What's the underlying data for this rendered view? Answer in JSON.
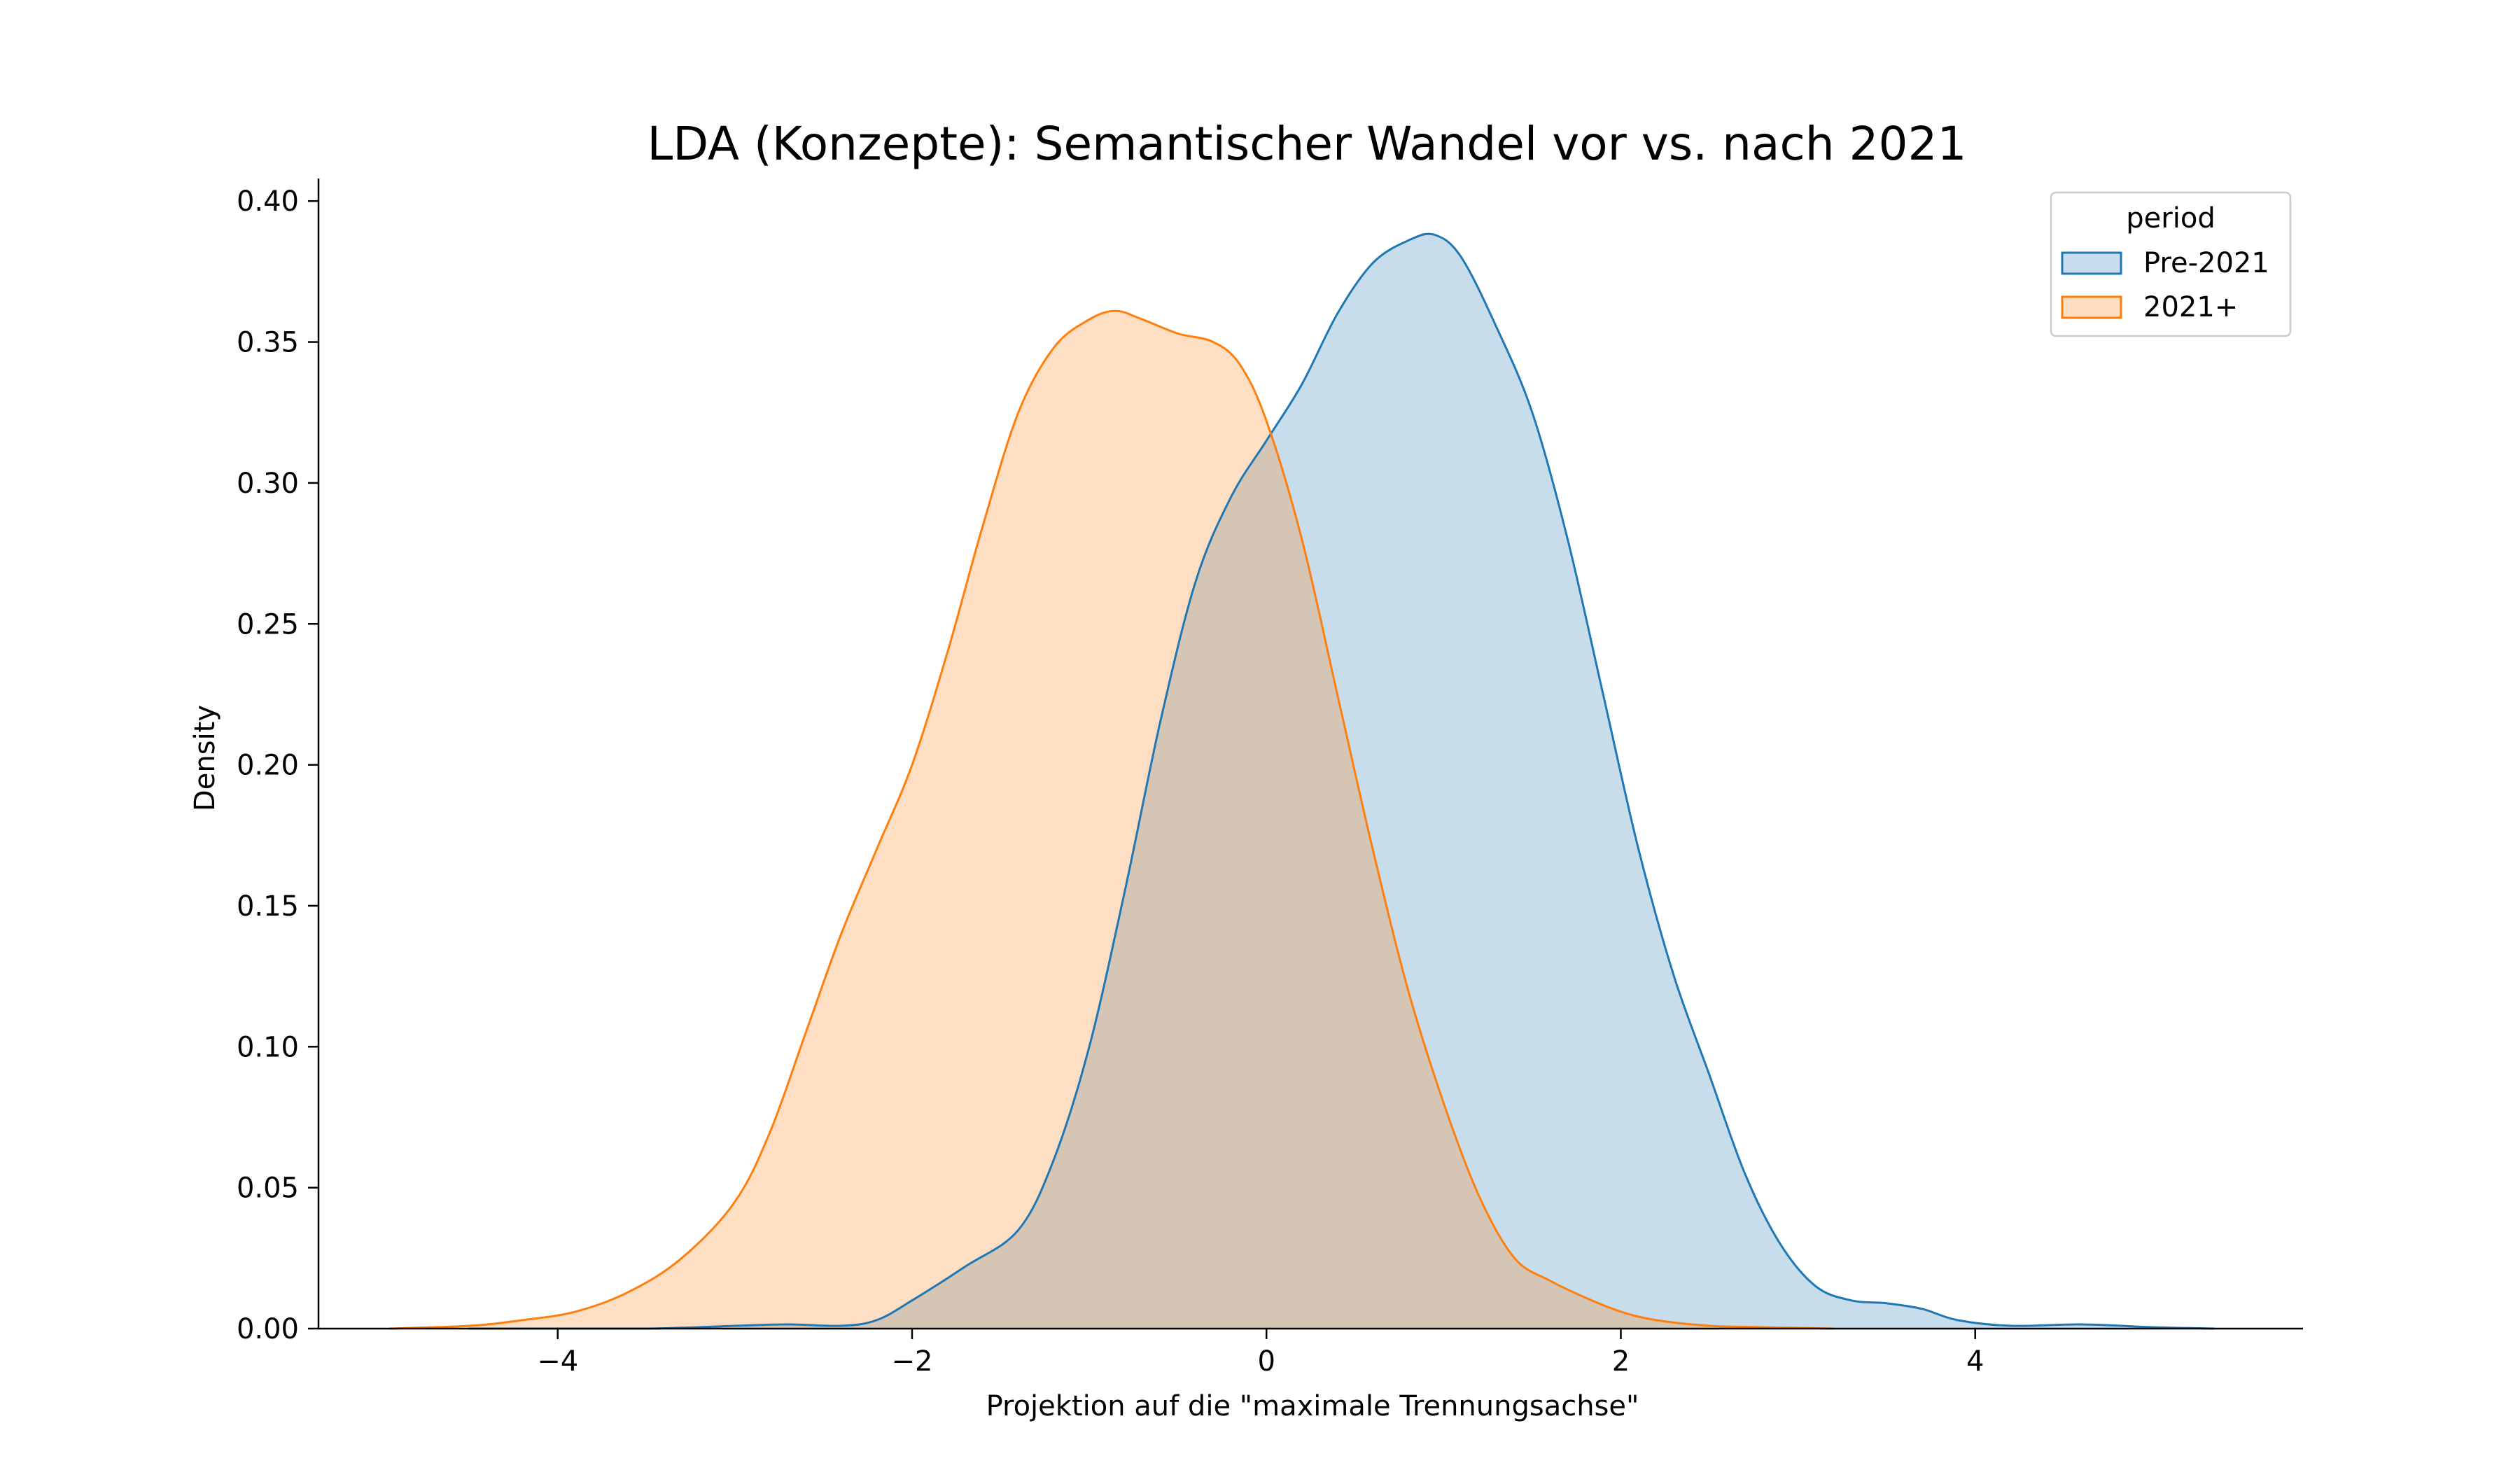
{
  "chart_data": {
    "type": "area",
    "subtype": "kde",
    "title": "LDA (Konzepte): Semantischer Wandel vor vs. nach 2021",
    "xlabel": "Projektion auf die \"maximale Trennungsachse\"",
    "ylabel": "Density",
    "xlim": [
      -5.35,
      5.85
    ],
    "ylim": [
      0,
      0.408
    ],
    "xticks": [
      -4,
      -2,
      0,
      2,
      4
    ],
    "xtick_labels": [
      "−4",
      "−2",
      "0",
      "2",
      "4"
    ],
    "yticks": [
      0,
      0.05,
      0.1,
      0.15,
      0.2,
      0.25,
      0.3,
      0.35,
      0.4
    ],
    "ytick_labels": [
      "0.00",
      "0.05",
      "0.10",
      "0.15",
      "0.20",
      "0.25",
      "0.30",
      "0.35",
      "0.40"
    ],
    "grid": false,
    "legend": {
      "title": "period",
      "position": "top-right"
    },
    "series": [
      {
        "name": "Pre-2021",
        "color": "#1f77b4",
        "fill_color": "#c6dbed",
        "points": [
          [
            -4.5,
            0.0
          ],
          [
            -3.5,
            0.0
          ],
          [
            -3.0,
            0.001
          ],
          [
            -2.7,
            0.0015
          ],
          [
            -2.4,
            0.001
          ],
          [
            -2.2,
            0.003
          ],
          [
            -2.0,
            0.01
          ],
          [
            -1.7,
            0.022
          ],
          [
            -1.4,
            0.035
          ],
          [
            -1.2,
            0.06
          ],
          [
            -1.0,
            0.1
          ],
          [
            -0.8,
            0.155
          ],
          [
            -0.6,
            0.215
          ],
          [
            -0.4,
            0.265
          ],
          [
            -0.2,
            0.295
          ],
          [
            0.0,
            0.315
          ],
          [
            0.2,
            0.335
          ],
          [
            0.4,
            0.36
          ],
          [
            0.6,
            0.378
          ],
          [
            0.8,
            0.386
          ],
          [
            0.95,
            0.388
          ],
          [
            1.1,
            0.38
          ],
          [
            1.3,
            0.355
          ],
          [
            1.5,
            0.325
          ],
          [
            1.7,
            0.28
          ],
          [
            1.9,
            0.225
          ],
          [
            2.1,
            0.17
          ],
          [
            2.3,
            0.125
          ],
          [
            2.5,
            0.09
          ],
          [
            2.7,
            0.055
          ],
          [
            2.9,
            0.03
          ],
          [
            3.1,
            0.015
          ],
          [
            3.3,
            0.01
          ],
          [
            3.5,
            0.009
          ],
          [
            3.7,
            0.007
          ],
          [
            3.9,
            0.003
          ],
          [
            4.2,
            0.001
          ],
          [
            4.6,
            0.0015
          ],
          [
            5.0,
            0.0005
          ],
          [
            5.35,
            0.0
          ]
        ]
      },
      {
        "name": "2021+",
        "color": "#ff7f0e",
        "fill_color": "#fddcbf",
        "points": [
          [
            -4.95,
            0.0
          ],
          [
            -4.5,
            0.001
          ],
          [
            -4.2,
            0.003
          ],
          [
            -3.9,
            0.006
          ],
          [
            -3.6,
            0.013
          ],
          [
            -3.3,
            0.025
          ],
          [
            -3.0,
            0.045
          ],
          [
            -2.8,
            0.07
          ],
          [
            -2.6,
            0.105
          ],
          [
            -2.4,
            0.14
          ],
          [
            -2.2,
            0.17
          ],
          [
            -2.0,
            0.2
          ],
          [
            -1.8,
            0.24
          ],
          [
            -1.6,
            0.285
          ],
          [
            -1.4,
            0.325
          ],
          [
            -1.2,
            0.348
          ],
          [
            -1.0,
            0.358
          ],
          [
            -0.85,
            0.361
          ],
          [
            -0.7,
            0.358
          ],
          [
            -0.5,
            0.353
          ],
          [
            -0.3,
            0.35
          ],
          [
            -0.15,
            0.342
          ],
          [
            0.0,
            0.322
          ],
          [
            0.2,
            0.28
          ],
          [
            0.4,
            0.225
          ],
          [
            0.6,
            0.17
          ],
          [
            0.8,
            0.12
          ],
          [
            1.0,
            0.08
          ],
          [
            1.2,
            0.047
          ],
          [
            1.4,
            0.025
          ],
          [
            1.6,
            0.017
          ],
          [
            1.8,
            0.011
          ],
          [
            2.0,
            0.006
          ],
          [
            2.2,
            0.003
          ],
          [
            2.5,
            0.001
          ],
          [
            2.8,
            0.0005
          ],
          [
            3.2,
            0.0
          ]
        ]
      }
    ]
  }
}
